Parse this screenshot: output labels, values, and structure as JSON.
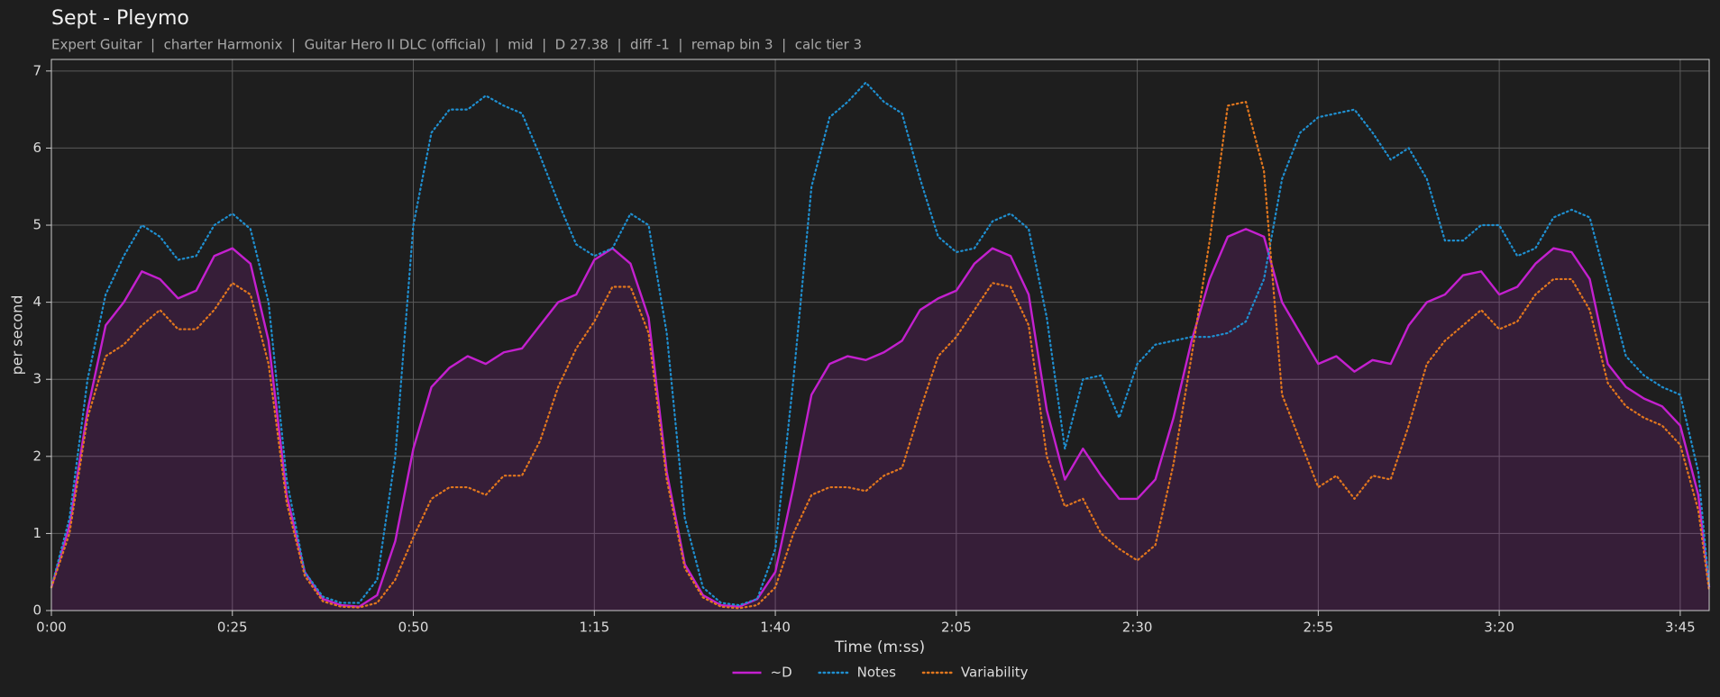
{
  "chart_data": {
    "type": "line",
    "title": "Sept - Pleymo",
    "subtitle": "Expert Guitar  |  charter Harmonix  |  Guitar Hero II DLC (official)  |  mid  |  D 27.38  |  diff -1  |  remap bin 3  |  calc tier 3",
    "xlabel": "Time (m:ss)",
    "ylabel": "per second",
    "xlim": [
      0,
      229
    ],
    "ylim": [
      0,
      7.15
    ],
    "xticks": [
      {
        "value": 0,
        "label": "0:00"
      },
      {
        "value": 25,
        "label": "0:25"
      },
      {
        "value": 50,
        "label": "0:50"
      },
      {
        "value": 75,
        "label": "1:15"
      },
      {
        "value": 100,
        "label": "1:40"
      },
      {
        "value": 125,
        "label": "2:05"
      },
      {
        "value": 150,
        "label": "2:30"
      },
      {
        "value": 175,
        "label": "2:55"
      },
      {
        "value": 200,
        "label": "3:20"
      },
      {
        "value": 225,
        "label": "3:45"
      }
    ],
    "yticks": [
      0,
      1,
      2,
      3,
      4,
      5,
      6,
      7
    ],
    "grid": true,
    "legend": "bottom",
    "x": [
      0,
      2.5,
      5,
      7.5,
      10,
      12.5,
      15,
      17.5,
      20,
      22.5,
      25,
      27.5,
      30,
      32.5,
      35,
      37.5,
      40,
      42.5,
      45,
      47.5,
      50,
      52.5,
      55,
      57.5,
      60,
      62.5,
      65,
      67.5,
      70,
      72.5,
      75,
      77.5,
      80,
      82.5,
      85,
      87.5,
      90,
      92.5,
      95,
      97.5,
      100,
      102.5,
      105,
      107.5,
      110,
      112.5,
      115,
      117.5,
      120,
      122.5,
      125,
      127.5,
      130,
      132.5,
      135,
      137.5,
      140,
      142.5,
      145,
      147.5,
      150,
      152.5,
      155,
      157.5,
      160,
      162.5,
      165,
      167.5,
      170,
      172.5,
      175,
      177.5,
      180,
      182.5,
      185,
      187.5,
      190,
      192.5,
      195,
      197.5,
      200,
      202.5,
      205,
      207.5,
      210,
      212.5,
      215,
      217.5,
      220,
      222.5,
      225,
      227.5,
      229
    ],
    "series": [
      {
        "name": "~D",
        "color": "#c420cf",
        "dash": "solid",
        "fill": true,
        "values": [
          0.3,
          1.1,
          2.6,
          3.7,
          4.0,
          4.4,
          4.3,
          4.05,
          4.15,
          4.6,
          4.7,
          4.5,
          3.5,
          1.5,
          0.5,
          0.15,
          0.07,
          0.05,
          0.2,
          0.9,
          2.1,
          2.9,
          3.15,
          3.3,
          3.2,
          3.35,
          3.4,
          3.7,
          4.0,
          4.1,
          4.55,
          4.7,
          4.5,
          3.8,
          1.8,
          0.6,
          0.2,
          0.07,
          0.05,
          0.15,
          0.5,
          1.6,
          2.8,
          3.2,
          3.3,
          3.25,
          3.35,
          3.5,
          3.9,
          4.05,
          4.15,
          4.5,
          4.7,
          4.6,
          4.1,
          2.6,
          1.7,
          2.1,
          1.75,
          1.45,
          1.45,
          1.7,
          2.5,
          3.5,
          4.3,
          4.85,
          4.95,
          4.85,
          4.0,
          3.6,
          3.2,
          3.3,
          3.1,
          3.25,
          3.2,
          3.7,
          4.0,
          4.1,
          4.35,
          4.4,
          4.1,
          4.2,
          4.5,
          4.7,
          4.65,
          4.3,
          3.2,
          2.9,
          2.75,
          2.65,
          2.4,
          1.5,
          0.3
        ]
      },
      {
        "name": "Notes",
        "color": "#1f8fd0",
        "dash": "dotted",
        "fill": false,
        "values": [
          0.3,
          1.2,
          3.0,
          4.1,
          4.6,
          5.0,
          4.85,
          4.55,
          4.6,
          5.0,
          5.15,
          4.95,
          4.0,
          1.7,
          0.5,
          0.18,
          0.1,
          0.1,
          0.4,
          2.0,
          5.0,
          6.2,
          6.5,
          6.5,
          6.68,
          6.55,
          6.45,
          5.9,
          5.3,
          4.75,
          4.6,
          4.7,
          5.15,
          5.0,
          3.6,
          1.2,
          0.3,
          0.1,
          0.07,
          0.15,
          0.8,
          3.0,
          5.5,
          6.4,
          6.6,
          6.85,
          6.6,
          6.45,
          5.6,
          4.85,
          4.65,
          4.7,
          5.05,
          5.15,
          4.95,
          3.8,
          2.1,
          3.0,
          3.05,
          2.5,
          3.2,
          3.45,
          3.5,
          3.55,
          3.55,
          3.6,
          3.75,
          4.3,
          5.6,
          6.2,
          6.4,
          6.45,
          6.5,
          6.2,
          5.85,
          6.0,
          5.6,
          4.8,
          4.8,
          5.0,
          5.0,
          4.6,
          4.7,
          5.1,
          5.2,
          5.1,
          4.2,
          3.3,
          3.05,
          2.9,
          2.8,
          1.8,
          0.3
        ]
      },
      {
        "name": "Variability",
        "color": "#e2771e",
        "dash": "dotted",
        "fill": false,
        "values": [
          0.3,
          1.0,
          2.5,
          3.3,
          3.45,
          3.7,
          3.9,
          3.65,
          3.65,
          3.9,
          4.25,
          4.1,
          3.2,
          1.4,
          0.45,
          0.12,
          0.05,
          0.04,
          0.1,
          0.4,
          0.95,
          1.45,
          1.6,
          1.6,
          1.5,
          1.75,
          1.75,
          2.2,
          2.9,
          3.4,
          3.75,
          4.2,
          4.2,
          3.6,
          1.7,
          0.55,
          0.17,
          0.05,
          0.03,
          0.07,
          0.3,
          1.0,
          1.5,
          1.6,
          1.6,
          1.55,
          1.75,
          1.85,
          2.6,
          3.3,
          3.55,
          3.9,
          4.25,
          4.2,
          3.7,
          2.0,
          1.35,
          1.45,
          1.0,
          0.8,
          0.65,
          0.85,
          1.9,
          3.3,
          4.8,
          6.55,
          6.6,
          5.7,
          2.8,
          2.2,
          1.6,
          1.75,
          1.45,
          1.75,
          1.7,
          2.4,
          3.2,
          3.5,
          3.7,
          3.9,
          3.65,
          3.75,
          4.1,
          4.3,
          4.3,
          3.9,
          2.95,
          2.65,
          2.5,
          2.4,
          2.15,
          1.3,
          0.25
        ]
      }
    ]
  }
}
